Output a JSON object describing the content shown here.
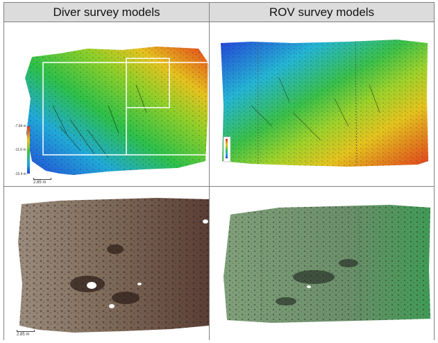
{
  "headers": {
    "diver": "Diver survey models",
    "rov": "ROV survey models"
  },
  "diver_dem": {
    "colorbar_labels": [
      "-7.84 m",
      "-11.6 m",
      "-15.4 m"
    ],
    "scale_label": "2.85 m"
  },
  "diver_ortho": {
    "scale_label": "2.85 m"
  },
  "colors": {
    "header_bg": "#dcdcdc",
    "border": "#7f7f7f",
    "depth_deep": "#1f4fd8",
    "depth_mid": "#2fbf3a",
    "depth_shallow": "#e0331f"
  }
}
